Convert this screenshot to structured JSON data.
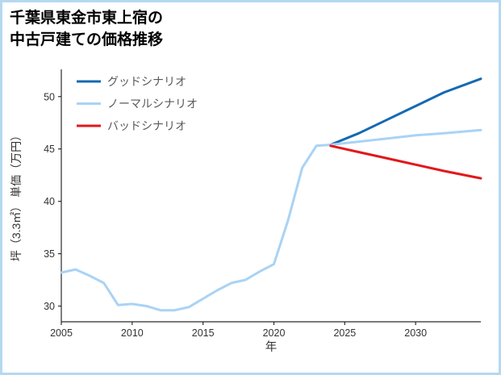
{
  "page": {
    "border_color": "#b5d8f0",
    "background": "#ffffff"
  },
  "chart_data": {
    "type": "line",
    "title": "千葉県東金市東上宿の 中古戸建ての価格推移",
    "title_lines": [
      "千葉県東金市東上宿の",
      "中古戸建ての価格推移"
    ],
    "xlabel": "年",
    "ylabel": "坪（3.3㎡） 単価（万円）",
    "xlim": [
      2005,
      2034.6
    ],
    "ylim": [
      28.5,
      52.6
    ],
    "xticks": [
      2005,
      2010,
      2015,
      2020,
      2025,
      2030
    ],
    "yticks": [
      30,
      35,
      40,
      45,
      50
    ],
    "grid": false,
    "legend_position": "upper-left",
    "axis_color": "#2b2b2b",
    "tick_label_color": "#333333",
    "axis_title_color": "#333333",
    "legend_label_color": "#595959",
    "series": [
      {
        "name": "グッドシナリオ",
        "color": "#1569b3",
        "width": 3,
        "x": [
          2024,
          2026,
          2028,
          2030,
          2032,
          2034.6
        ],
        "y": [
          45.4,
          46.5,
          47.8,
          49.1,
          50.4,
          51.7
        ]
      },
      {
        "name": "ノーマルシナリオ",
        "color": "#a9d3f5",
        "width": 3,
        "x": [
          2005,
          2006,
          2007,
          2008,
          2009,
          2010,
          2011,
          2012,
          2013,
          2014,
          2015,
          2016,
          2017,
          2018,
          2019,
          2020,
          2021,
          2022,
          2023,
          2024,
          2026,
          2028,
          2030,
          2032,
          2034.6
        ],
        "y": [
          33.2,
          33.5,
          32.9,
          32.2,
          30.1,
          30.2,
          30.0,
          29.6,
          29.6,
          29.9,
          30.7,
          31.5,
          32.2,
          32.5,
          33.3,
          34.0,
          38.2,
          43.2,
          45.3,
          45.4,
          45.7,
          46.0,
          46.3,
          46.5,
          46.8
        ]
      },
      {
        "name": "バッドシナリオ",
        "color": "#e2181b",
        "width": 3,
        "x": [
          2024,
          2026,
          2028,
          2030,
          2032,
          2034.6
        ],
        "y": [
          45.3,
          44.7,
          44.1,
          43.5,
          42.9,
          42.2
        ]
      }
    ]
  }
}
